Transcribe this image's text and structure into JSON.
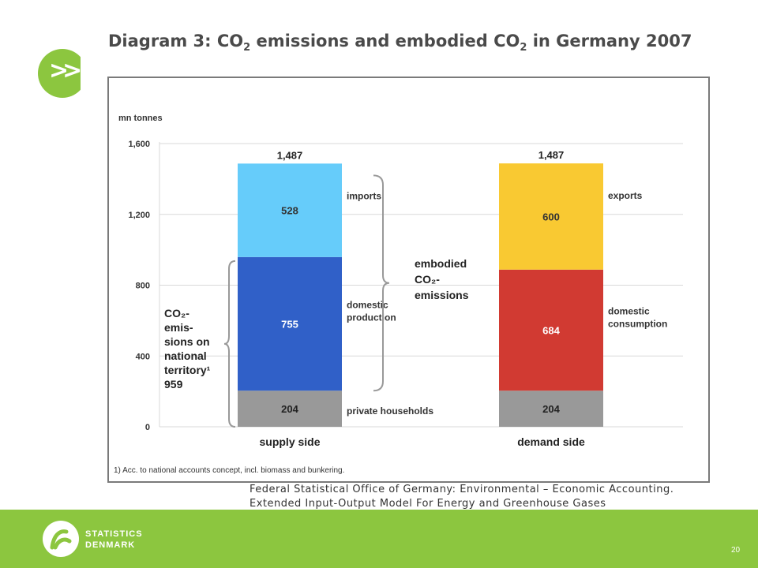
{
  "header": {
    "badge_glyph": ">>",
    "title_prefix": "Diagram 3: CO",
    "title_sub1": "2",
    "title_middle": " emissions and embodied CO",
    "title_sub2": "2",
    "title_suffix": " in Germany 2007"
  },
  "chart_data": {
    "type": "bar",
    "stacked": true,
    "unit_label": "mn tonnes",
    "categories": [
      "supply side",
      "demand side"
    ],
    "ylim": [
      0,
      1600
    ],
    "yticks": [
      0,
      400,
      800,
      1200,
      1600
    ],
    "ytick_labels": [
      "0",
      "400",
      "800",
      "1,200",
      "1,600"
    ],
    "grid": true,
    "totals": [
      "1,487",
      "1,487"
    ],
    "stacks": [
      {
        "category": "supply side",
        "segments": [
          {
            "label": "private households",
            "value": 204,
            "color": "#999999"
          },
          {
            "label": "domestic production",
            "value": 755,
            "color": "#3060c8"
          },
          {
            "label": "imports",
            "value": 528,
            "color": "#66ccfa"
          }
        ]
      },
      {
        "category": "demand side",
        "segments": [
          {
            "label": "",
            "value": 204,
            "color": "#999999"
          },
          {
            "label": "domestic consumption",
            "value": 684,
            "color": "#d13a32"
          },
          {
            "label": "exports",
            "value": 600,
            "color": "#f9c932"
          }
        ]
      }
    ],
    "annotations": {
      "embodied": [
        "embodied",
        "CO₂-",
        "emissions"
      ],
      "territory": [
        "CO₂-",
        "emis-",
        "sions on",
        "national",
        "territory¹",
        "959"
      ]
    },
    "footnote": "1) Acc. to national accounts concept, incl. biomass and bunkering."
  },
  "source": {
    "line1": "Federal Statistical Office of Germany: Environmental – Economic Accounting.",
    "line2": "Extended Input-Output Model For Energy and Greenhouse Gases"
  },
  "footer": {
    "logo_line1": "STATISTICS",
    "logo_line2": "DENMARK",
    "page_number": "20"
  },
  "colors": {
    "brand_green": "#8cc63f",
    "grid": "#d9d9d9"
  }
}
